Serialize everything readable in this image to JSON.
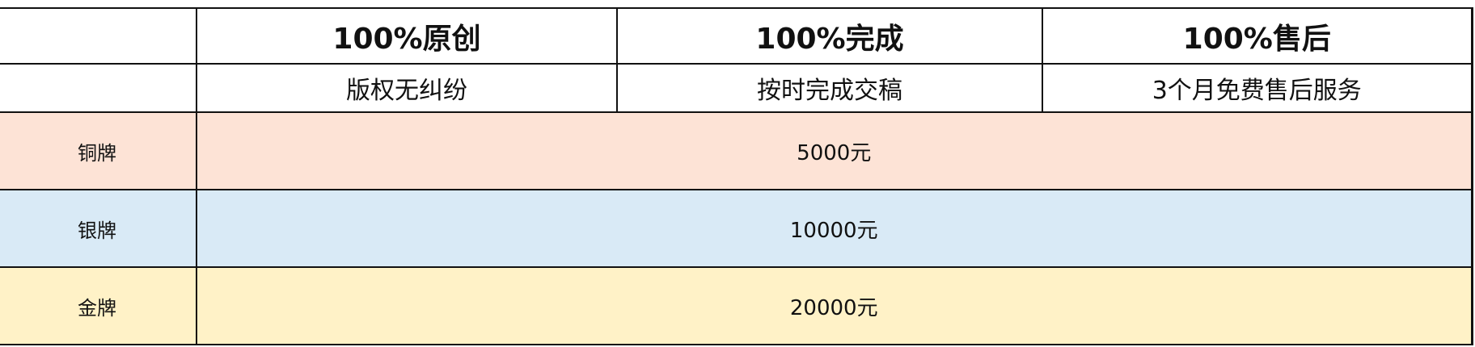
{
  "header": {
    "features": [
      {
        "title": "100%原创",
        "subtitle": "版权无纠纷"
      },
      {
        "title": "100%完成",
        "subtitle": "按时完成交稿"
      },
      {
        "title": "100%售后",
        "subtitle": "3个月免费售后服务"
      }
    ]
  },
  "tiers": [
    {
      "name": "铜牌",
      "price": "5000元",
      "color": "#fde3d6"
    },
    {
      "name": "银牌",
      "price": "10000元",
      "color": "#d9eaf6"
    },
    {
      "name": "金牌",
      "price": "20000元",
      "color": "#fff2c7"
    }
  ]
}
